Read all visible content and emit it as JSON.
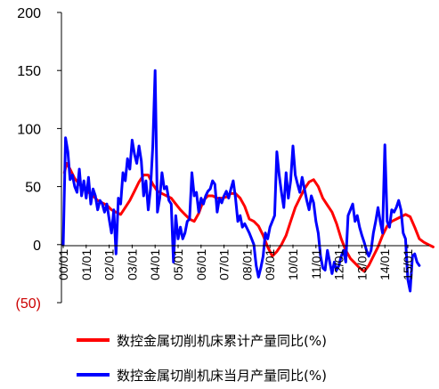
{
  "chart_data": {
    "type": "line",
    "ylim": [
      -50,
      200
    ],
    "yticks": [
      {
        "value": 200,
        "label": "200"
      },
      {
        "value": 150,
        "label": "150"
      },
      {
        "value": 100,
        "label": "100"
      },
      {
        "value": 50,
        "label": "50"
      },
      {
        "value": 0,
        "label": "0"
      },
      {
        "value": -50,
        "label": "(50)"
      }
    ],
    "xticks": [
      "00/01",
      "01/01",
      "02/01",
      "03/01",
      "04/01",
      "05/01",
      "06/01",
      "07/01",
      "08/01",
      "09/01",
      "10/01",
      "11/01",
      "12/01",
      "13/01",
      "14/01",
      "15/01"
    ],
    "grid": false,
    "legend_position": "bottom",
    "colors": {
      "cumulative": "#ff0000",
      "monthly": "#0000ff",
      "negative_label": "#cc0000"
    },
    "series": [
      {
        "name": "数控金属切削机床累计产量同比(%)",
        "key": "cumulative",
        "points": [
          [
            0.05,
            62
          ],
          [
            0.15,
            70
          ],
          [
            0.3,
            65
          ],
          [
            0.5,
            57
          ],
          [
            0.7,
            52
          ],
          [
            0.9,
            48
          ],
          [
            1.1,
            45
          ],
          [
            1.3,
            42
          ],
          [
            1.5,
            38
          ],
          [
            1.7,
            36
          ],
          [
            1.9,
            34
          ],
          [
            2.1,
            30
          ],
          [
            2.3,
            28
          ],
          [
            2.5,
            26
          ],
          [
            2.7,
            32
          ],
          [
            2.9,
            38
          ],
          [
            3.1,
            46
          ],
          [
            3.3,
            54
          ],
          [
            3.5,
            60
          ],
          [
            3.7,
            60
          ],
          [
            3.9,
            52
          ],
          [
            4.1,
            46
          ],
          [
            4.3,
            44
          ],
          [
            4.5,
            42
          ],
          [
            4.7,
            40
          ],
          [
            4.9,
            35
          ],
          [
            5.1,
            30
          ],
          [
            5.3,
            26
          ],
          [
            5.5,
            22
          ],
          [
            5.7,
            20
          ],
          [
            5.9,
            27
          ],
          [
            6.1,
            38
          ],
          [
            6.3,
            42
          ],
          [
            6.5,
            42
          ],
          [
            6.7,
            40
          ],
          [
            6.9,
            40
          ],
          [
            7.1,
            41
          ],
          [
            7.3,
            44
          ],
          [
            7.5,
            44
          ],
          [
            7.7,
            40
          ],
          [
            7.9,
            33
          ],
          [
            8.1,
            22
          ],
          [
            8.3,
            20
          ],
          [
            8.5,
            16
          ],
          [
            8.7,
            8
          ],
          [
            8.9,
            -2
          ],
          [
            9.1,
            -10
          ],
          [
            9.3,
            -6
          ],
          [
            9.5,
            0
          ],
          [
            9.7,
            8
          ],
          [
            9.9,
            20
          ],
          [
            10.1,
            32
          ],
          [
            10.3,
            40
          ],
          [
            10.5,
            48
          ],
          [
            10.7,
            54
          ],
          [
            10.9,
            56
          ],
          [
            11.1,
            50
          ],
          [
            11.3,
            40
          ],
          [
            11.5,
            34
          ],
          [
            11.7,
            28
          ],
          [
            11.9,
            18
          ],
          [
            12.1,
            5
          ],
          [
            12.3,
            -5
          ],
          [
            12.5,
            -12
          ],
          [
            12.7,
            -16
          ],
          [
            12.9,
            -20
          ],
          [
            13.1,
            -23
          ],
          [
            13.3,
            -18
          ],
          [
            13.5,
            -10
          ],
          [
            13.7,
            -2
          ],
          [
            13.9,
            8
          ],
          [
            14.1,
            16
          ],
          [
            14.3,
            20
          ],
          [
            14.5,
            22
          ],
          [
            14.7,
            24
          ],
          [
            14.9,
            26
          ],
          [
            15.1,
            24
          ],
          [
            15.3,
            15
          ],
          [
            15.5,
            5
          ],
          [
            15.7,
            2
          ],
          [
            15.9,
            0
          ],
          [
            16.1,
            -2
          ]
        ]
      },
      {
        "name": "数控金属切削机床当月产量同比(%)",
        "key": "monthly",
        "points": [
          [
            0.0,
            0
          ],
          [
            0.1,
            92
          ],
          [
            0.2,
            80
          ],
          [
            0.3,
            56
          ],
          [
            0.4,
            60
          ],
          [
            0.5,
            50
          ],
          [
            0.6,
            45
          ],
          [
            0.7,
            65
          ],
          [
            0.8,
            42
          ],
          [
            0.9,
            55
          ],
          [
            1.0,
            40
          ],
          [
            1.1,
            58
          ],
          [
            1.2,
            35
          ],
          [
            1.3,
            48
          ],
          [
            1.4,
            42
          ],
          [
            1.5,
            30
          ],
          [
            1.6,
            38
          ],
          [
            1.7,
            35
          ],
          [
            1.8,
            28
          ],
          [
            1.9,
            35
          ],
          [
            2.0,
            22
          ],
          [
            2.1,
            10
          ],
          [
            2.2,
            30
          ],
          [
            2.3,
            -8
          ],
          [
            2.4,
            40
          ],
          [
            2.5,
            35
          ],
          [
            2.6,
            62
          ],
          [
            2.7,
            55
          ],
          [
            2.8,
            74
          ],
          [
            2.9,
            65
          ],
          [
            3.0,
            90
          ],
          [
            3.1,
            78
          ],
          [
            3.2,
            70
          ],
          [
            3.3,
            85
          ],
          [
            3.4,
            72
          ],
          [
            3.5,
            42
          ],
          [
            3.6,
            55
          ],
          [
            3.7,
            30
          ],
          [
            3.8,
            48
          ],
          [
            3.9,
            85
          ],
          [
            4.0,
            150
          ],
          [
            4.1,
            28
          ],
          [
            4.2,
            40
          ],
          [
            4.3,
            62
          ],
          [
            4.4,
            48
          ],
          [
            4.5,
            50
          ],
          [
            4.6,
            38
          ],
          [
            4.7,
            35
          ],
          [
            4.8,
            -15
          ],
          [
            4.9,
            25
          ],
          [
            5.0,
            5
          ],
          [
            5.1,
            15
          ],
          [
            5.2,
            5
          ],
          [
            5.3,
            10
          ],
          [
            5.4,
            20
          ],
          [
            5.5,
            22
          ],
          [
            5.6,
            62
          ],
          [
            5.7,
            42
          ],
          [
            5.8,
            45
          ],
          [
            5.9,
            28
          ],
          [
            6.0,
            40
          ],
          [
            6.1,
            35
          ],
          [
            6.2,
            42
          ],
          [
            6.3,
            46
          ],
          [
            6.4,
            48
          ],
          [
            6.5,
            55
          ],
          [
            6.6,
            52
          ],
          [
            6.7,
            28
          ],
          [
            6.8,
            40
          ],
          [
            6.9,
            36
          ],
          [
            7.0,
            42
          ],
          [
            7.1,
            46
          ],
          [
            7.2,
            40
          ],
          [
            7.3,
            48
          ],
          [
            7.4,
            55
          ],
          [
            7.5,
            40
          ],
          [
            7.6,
            20
          ],
          [
            7.7,
            25
          ],
          [
            7.8,
            15
          ],
          [
            7.9,
            18
          ],
          [
            8.0,
            14
          ],
          [
            8.1,
            10
          ],
          [
            8.2,
            5
          ],
          [
            8.3,
            0
          ],
          [
            8.4,
            -18
          ],
          [
            8.5,
            -28
          ],
          [
            8.6,
            -20
          ],
          [
            8.7,
            -10
          ],
          [
            8.8,
            10
          ],
          [
            8.9,
            5
          ],
          [
            9.0,
            15
          ],
          [
            9.1,
            20
          ],
          [
            9.2,
            25
          ],
          [
            9.3,
            80
          ],
          [
            9.4,
            60
          ],
          [
            9.5,
            45
          ],
          [
            9.6,
            32
          ],
          [
            9.7,
            62
          ],
          [
            9.8,
            40
          ],
          [
            9.9,
            55
          ],
          [
            10.0,
            85
          ],
          [
            10.1,
            60
          ],
          [
            10.2,
            52
          ],
          [
            10.3,
            45
          ],
          [
            10.4,
            58
          ],
          [
            10.5,
            48
          ],
          [
            10.6,
            38
          ],
          [
            10.7,
            30
          ],
          [
            10.8,
            42
          ],
          [
            10.9,
            36
          ],
          [
            11.0,
            20
          ],
          [
            11.1,
            10
          ],
          [
            11.2,
            -10
          ],
          [
            11.3,
            -20
          ],
          [
            11.4,
            -22
          ],
          [
            11.5,
            -5
          ],
          [
            11.6,
            -15
          ],
          [
            11.7,
            -25
          ],
          [
            11.8,
            -15
          ],
          [
            11.9,
            -22
          ],
          [
            12.0,
            -18
          ],
          [
            12.1,
            -10
          ],
          [
            12.2,
            -5
          ],
          [
            12.3,
            -15
          ],
          [
            12.4,
            25
          ],
          [
            12.5,
            30
          ],
          [
            12.6,
            35
          ],
          [
            12.7,
            20
          ],
          [
            12.8,
            25
          ],
          [
            12.9,
            15
          ],
          [
            13.0,
            8
          ],
          [
            13.1,
            2
          ],
          [
            13.2,
            -5
          ],
          [
            13.3,
            -10
          ],
          [
            13.4,
            -5
          ],
          [
            13.5,
            10
          ],
          [
            13.6,
            20
          ],
          [
            13.7,
            32
          ],
          [
            13.8,
            20
          ],
          [
            13.9,
            10
          ],
          [
            14.0,
            86
          ],
          [
            14.1,
            20
          ],
          [
            14.2,
            15
          ],
          [
            14.3,
            30
          ],
          [
            14.4,
            28
          ],
          [
            14.5,
            32
          ],
          [
            14.6,
            38
          ],
          [
            14.7,
            30
          ],
          [
            14.8,
            10
          ],
          [
            14.9,
            5
          ],
          [
            15.0,
            -30
          ],
          [
            15.1,
            -40
          ],
          [
            15.2,
            -10
          ],
          [
            15.3,
            -8
          ],
          [
            15.4,
            -15
          ],
          [
            15.5,
            -18
          ]
        ]
      }
    ]
  }
}
